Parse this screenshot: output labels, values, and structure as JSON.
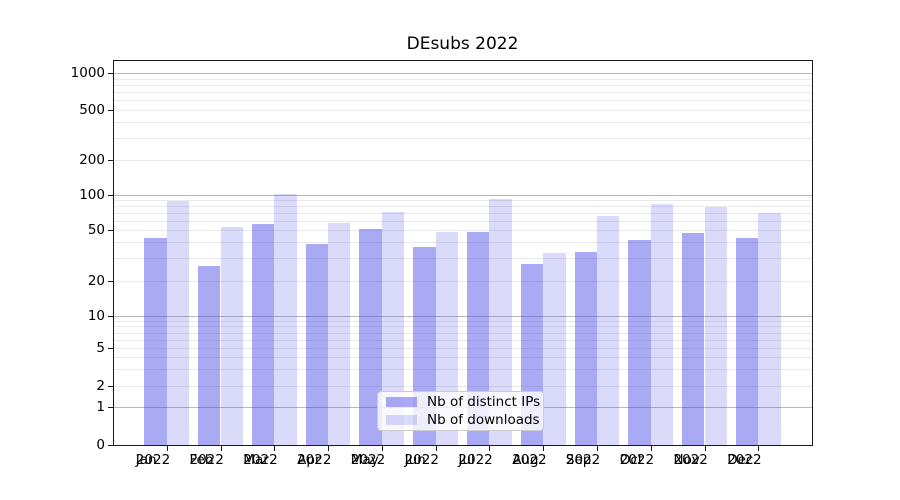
{
  "chart_data": {
    "type": "bar",
    "title": "DEsubs 2022",
    "x": [
      "Jan 2022",
      "Feb 2022",
      "Mar 2022",
      "Apr 2022",
      "May 2022",
      "Jun 2022",
      "Jul 2022",
      "Aug 2022",
      "Sep 2022",
      "Oct 2022",
      "Nov 2022",
      "Dec 2022"
    ],
    "series": [
      {
        "name": "Nb of distinct IPs",
        "color": "rgba(70,70,230,0.46)",
        "values": [
          43,
          26,
          56,
          39,
          51,
          37,
          48,
          27,
          34,
          42,
          47,
          43
        ]
      },
      {
        "name": "Nb of downloads",
        "color": "rgba(70,70,230,0.20)",
        "values": [
          89,
          53,
          102,
          57,
          71,
          48,
          92,
          33,
          66,
          84,
          79,
          70
        ]
      }
    ],
    "y_ticks": [
      0,
      1,
      2,
      5,
      10,
      20,
      50,
      100,
      200,
      500,
      1000
    ],
    "y_scale": "symlog",
    "ylim": [
      0,
      1280
    ],
    "grid": "horizontal major+minor",
    "legend_position": "lower center",
    "colors": {
      "major_grid": "#b9b9b9",
      "minor_grid": "#e9e9e9",
      "spine": "#1a1a1a",
      "text": "#000000"
    }
  }
}
